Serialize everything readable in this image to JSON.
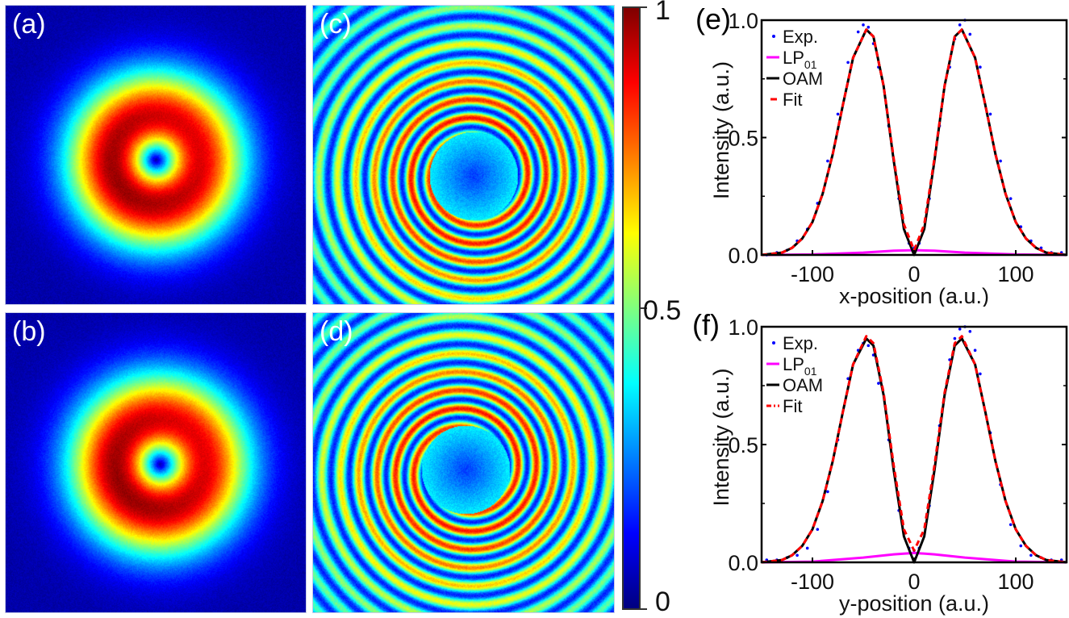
{
  "panels": {
    "a": {
      "label": "(a)",
      "type": "intensity-image",
      "description": "doughnut-shaped OAM beam intensity"
    },
    "b": {
      "label": "(b)",
      "type": "intensity-image",
      "description": "doughnut-shaped OAM beam intensity"
    },
    "c": {
      "label": "(c)",
      "type": "interference-image",
      "description": "single-arm spiral interference pattern"
    },
    "d": {
      "label": "(d)",
      "type": "interference-image",
      "description": "spiral interference pattern"
    }
  },
  "colorbar": {
    "colormap": "jet",
    "min": 0,
    "max": 1,
    "tick_labels": [
      "1",
      "0.5",
      "0"
    ],
    "tick_values": [
      1,
      0.5,
      0
    ]
  },
  "chart_data": [
    {
      "type": "line",
      "panel_label": "(e)",
      "title": "",
      "xlabel": "x-position (a.u.)",
      "ylabel": "Intensity (a.u.)",
      "xlim": [
        -150,
        150
      ],
      "ylim": [
        0,
        1.0
      ],
      "xticks": [
        -100,
        0,
        100
      ],
      "xtick_labels": [
        "-100",
        "0",
        "100"
      ],
      "yticks": [
        0.0,
        0.5,
        1.0
      ],
      "ytick_labels": [
        "0.0",
        "0.5",
        "1.0"
      ],
      "grid": false,
      "legend": {
        "position": "top-left",
        "entries": [
          {
            "label": "Exp.",
            "sub": "",
            "color": "#0000ff",
            "style": "dots"
          },
          {
            "label": "LP",
            "sub": "01",
            "color": "#ff00ff",
            "style": "solid"
          },
          {
            "label": "OAM",
            "sub": "",
            "color": "#000000",
            "style": "solid"
          },
          {
            "label": "Fit",
            "sub": "",
            "color": "#ff0000",
            "style": "dash"
          }
        ]
      },
      "series": [
        {
          "name": "OAM",
          "model": "x^2 gaussian doughnut",
          "peak_positions": [
            -47,
            47
          ],
          "peak_value": 0.96,
          "color": "#000000",
          "x": [
            -150,
            -130,
            -120,
            -110,
            -100,
            -90,
            -80,
            -70,
            -60,
            -47,
            -40,
            -30,
            -20,
            -10,
            0,
            10,
            20,
            30,
            40,
            47,
            60,
            70,
            80,
            90,
            100,
            110,
            120,
            130,
            150
          ],
          "y": [
            0.0,
            0.01,
            0.03,
            0.07,
            0.14,
            0.26,
            0.43,
            0.64,
            0.84,
            0.96,
            0.93,
            0.72,
            0.4,
            0.11,
            0.0,
            0.11,
            0.4,
            0.72,
            0.93,
            0.96,
            0.84,
            0.64,
            0.43,
            0.26,
            0.14,
            0.07,
            0.03,
            0.01,
            0.0
          ]
        },
        {
          "name": "LP01",
          "color": "#ff00ff",
          "x": [
            -150,
            -100,
            -50,
            -20,
            0,
            20,
            50,
            100,
            150
          ],
          "y": [
            0.0,
            0.002,
            0.01,
            0.018,
            0.02,
            0.018,
            0.01,
            0.002,
            0.0
          ]
        },
        {
          "name": "Fit",
          "color": "#ff0000",
          "x": [
            -150,
            -130,
            -120,
            -110,
            -100,
            -90,
            -80,
            -70,
            -60,
            -47,
            -40,
            -30,
            -20,
            -10,
            0,
            10,
            20,
            30,
            40,
            47,
            60,
            70,
            80,
            90,
            100,
            110,
            120,
            130,
            150
          ],
          "y": [
            0.0,
            0.01,
            0.03,
            0.07,
            0.14,
            0.26,
            0.43,
            0.64,
            0.84,
            0.96,
            0.93,
            0.72,
            0.41,
            0.13,
            0.02,
            0.13,
            0.41,
            0.72,
            0.93,
            0.96,
            0.84,
            0.64,
            0.43,
            0.26,
            0.14,
            0.07,
            0.03,
            0.01,
            0.0
          ]
        },
        {
          "name": "Exp.",
          "color": "#0000ff",
          "style": "scatter",
          "x": [
            -145,
            -135,
            -125,
            -115,
            -105,
            -95,
            -85,
            -75,
            -65,
            -55,
            -50,
            -45,
            -40,
            -35,
            -25,
            -15,
            -5,
            0,
            5,
            15,
            25,
            35,
            40,
            45,
            50,
            55,
            65,
            75,
            85,
            95,
            105,
            115,
            125,
            135,
            145
          ],
          "y": [
            0.0,
            0.01,
            0.02,
            0.06,
            0.11,
            0.22,
            0.4,
            0.6,
            0.82,
            0.95,
            0.98,
            0.97,
            0.9,
            0.8,
            0.55,
            0.24,
            0.05,
            0.03,
            0.05,
            0.24,
            0.55,
            0.8,
            0.92,
            0.98,
            1.0,
            0.94,
            0.8,
            0.6,
            0.4,
            0.24,
            0.12,
            0.06,
            0.03,
            0.01,
            0.01
          ]
        }
      ]
    },
    {
      "type": "line",
      "panel_label": "(f)",
      "title": "",
      "xlabel": "y-position (a.u.)",
      "ylabel": "Intensity (a.u.)",
      "xlim": [
        -150,
        150
      ],
      "ylim": [
        0,
        1.0
      ],
      "xticks": [
        -100,
        0,
        100
      ],
      "xtick_labels": [
        "-100",
        "0",
        "100"
      ],
      "yticks": [
        0.0,
        0.5,
        1.0
      ],
      "ytick_labels": [
        "0.0",
        "0.5",
        "1.0"
      ],
      "grid": false,
      "legend": {
        "position": "top-left",
        "entries": [
          {
            "label": "Exp.",
            "sub": "",
            "color": "#0000ff",
            "style": "dots"
          },
          {
            "label": "LP",
            "sub": "01",
            "color": "#ff00ff",
            "style": "solid"
          },
          {
            "label": "OAM",
            "sub": "",
            "color": "#000000",
            "style": "solid"
          },
          {
            "label": "Fit",
            "sub": "",
            "color": "#ff0000",
            "style": "dash-dot"
          }
        ]
      },
      "series": [
        {
          "name": "OAM",
          "color": "#000000",
          "x": [
            -150,
            -130,
            -120,
            -110,
            -100,
            -90,
            -80,
            -70,
            -60,
            -47,
            -40,
            -30,
            -20,
            -10,
            0,
            10,
            20,
            30,
            40,
            47,
            60,
            70,
            80,
            90,
            100,
            110,
            120,
            130,
            150
          ],
          "y": [
            0.0,
            0.01,
            0.03,
            0.07,
            0.14,
            0.26,
            0.43,
            0.64,
            0.84,
            0.95,
            0.92,
            0.71,
            0.39,
            0.11,
            0.0,
            0.11,
            0.39,
            0.71,
            0.92,
            0.95,
            0.84,
            0.64,
            0.43,
            0.26,
            0.14,
            0.07,
            0.03,
            0.01,
            0.0
          ]
        },
        {
          "name": "LP01",
          "color": "#ff00ff",
          "x": [
            -150,
            -100,
            -50,
            -20,
            0,
            20,
            50,
            100,
            150
          ],
          "y": [
            0.0,
            0.003,
            0.02,
            0.034,
            0.04,
            0.034,
            0.02,
            0.003,
            0.0
          ]
        },
        {
          "name": "Fit",
          "color": "#ff0000",
          "x": [
            -150,
            -130,
            -120,
            -110,
            -100,
            -90,
            -80,
            -70,
            -60,
            -47,
            -40,
            -30,
            -20,
            -10,
            0,
            10,
            20,
            30,
            40,
            47,
            60,
            70,
            80,
            90,
            100,
            110,
            120,
            130,
            150
          ],
          "y": [
            0.0,
            0.01,
            0.03,
            0.07,
            0.14,
            0.26,
            0.43,
            0.64,
            0.84,
            0.96,
            0.93,
            0.72,
            0.41,
            0.14,
            0.05,
            0.14,
            0.41,
            0.72,
            0.93,
            0.96,
            0.84,
            0.64,
            0.43,
            0.26,
            0.14,
            0.07,
            0.03,
            0.01,
            0.0
          ]
        },
        {
          "name": "Exp.",
          "color": "#0000ff",
          "style": "scatter",
          "x": [
            -145,
            -135,
            -125,
            -115,
            -105,
            -95,
            -85,
            -75,
            -65,
            -55,
            -50,
            -45,
            -40,
            -35,
            -25,
            -15,
            -5,
            0,
            5,
            15,
            25,
            35,
            40,
            45,
            50,
            55,
            60,
            65,
            75,
            85,
            95,
            105,
            115,
            125,
            135,
            145
          ],
          "y": [
            0.01,
            0.01,
            0.02,
            0.03,
            0.06,
            0.14,
            0.3,
            0.52,
            0.78,
            0.9,
            0.93,
            0.92,
            0.88,
            0.76,
            0.52,
            0.22,
            0.06,
            0.05,
            0.06,
            0.24,
            0.58,
            0.86,
            0.95,
            0.99,
            1.0,
            0.98,
            0.9,
            0.8,
            0.55,
            0.33,
            0.16,
            0.07,
            0.03,
            0.02,
            0.01,
            0.01
          ]
        }
      ]
    }
  ]
}
